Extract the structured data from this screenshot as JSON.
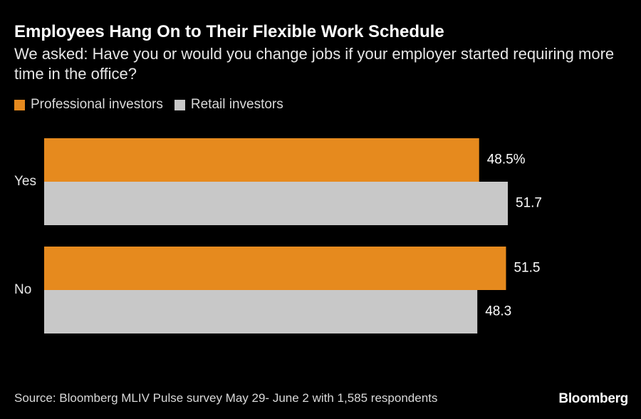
{
  "title": "Employees Hang On to Their Flexible Work Schedule",
  "subtitle": "We asked: Have you or would you change jobs if your employer started requiring more time in the office?",
  "source": "Source: Bloomberg MLIV Pulse survey May 29- June 2 with 1,585 respondents",
  "logo": "Bloomberg",
  "colors": {
    "professional": "#e68a1e",
    "retail": "#c8c8c8",
    "background": "#000000"
  },
  "chart_data": {
    "type": "bar",
    "orientation": "horizontal",
    "categories": [
      "Yes",
      "No"
    ],
    "series": [
      {
        "name": "Professional investors",
        "values": [
          48.5,
          51.5
        ],
        "labels": [
          "48.5%",
          "51.5"
        ]
      },
      {
        "name": "Retail investors",
        "values": [
          51.7,
          48.3
        ],
        "labels": [
          "51.7",
          "48.3"
        ]
      }
    ],
    "xlim": [
      0,
      51.7
    ],
    "legend": "top-left",
    "grid": false
  }
}
